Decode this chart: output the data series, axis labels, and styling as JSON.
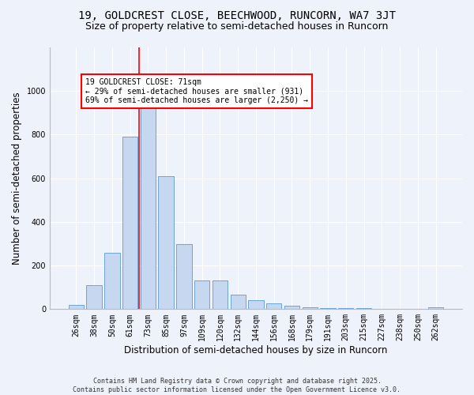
{
  "title1": "19, GOLDCREST CLOSE, BEECHWOOD, RUNCORN, WA7 3JT",
  "title2": "Size of property relative to semi-detached houses in Runcorn",
  "xlabel": "Distribution of semi-detached houses by size in Runcorn",
  "ylabel": "Number of semi-detached properties",
  "categories": [
    "26sqm",
    "38sqm",
    "50sqm",
    "61sqm",
    "73sqm",
    "85sqm",
    "97sqm",
    "109sqm",
    "120sqm",
    "132sqm",
    "144sqm",
    "156sqm",
    "168sqm",
    "179sqm",
    "191sqm",
    "203sqm",
    "215sqm",
    "227sqm",
    "238sqm",
    "250sqm",
    "262sqm"
  ],
  "values": [
    20,
    110,
    260,
    790,
    930,
    610,
    300,
    130,
    130,
    65,
    40,
    25,
    15,
    10,
    5,
    5,
    5,
    3,
    2,
    2,
    10
  ],
  "bar_color": "#c5d8f0",
  "bar_edge_color": "#5b9bd5",
  "vline_color": "red",
  "annotation_text": "19 GOLDCREST CLOSE: 71sqm\n← 29% of semi-detached houses are smaller (931)\n69% of semi-detached houses are larger (2,250) →",
  "annotation_box_color": "white",
  "annotation_box_edge": "red",
  "ylim": [
    0,
    1200
  ],
  "yticks": [
    0,
    200,
    400,
    600,
    800,
    1000
  ],
  "background_color": "#eef2fb",
  "footer": "Contains HM Land Registry data © Crown copyright and database right 2025.\nContains public sector information licensed under the Open Government Licence v3.0.",
  "title_fontsize": 10,
  "subtitle_fontsize": 9,
  "axis_label_fontsize": 8.5,
  "tick_fontsize": 7,
  "footer_fontsize": 6
}
